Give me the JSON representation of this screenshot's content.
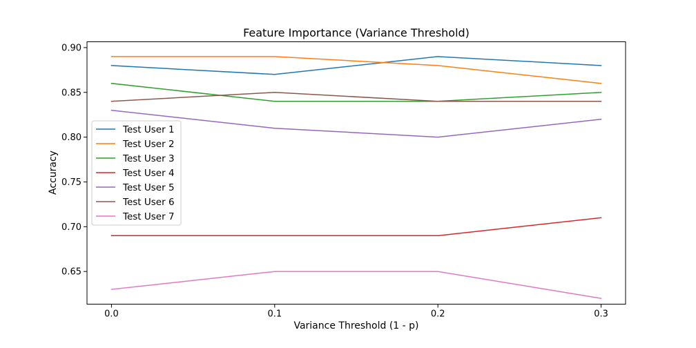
{
  "chart_data": {
    "type": "line",
    "title": "Feature Importance (Variance Threshold)",
    "xlabel": "Variance Threshold (1 - p)",
    "ylabel": "Accuracy",
    "x": [
      0.0,
      0.1,
      0.2,
      0.3
    ],
    "xticks": [
      "0.0",
      "0.1",
      "0.2",
      "0.3"
    ],
    "yticks": [
      0.65,
      0.7,
      0.75,
      0.8,
      0.85,
      0.9
    ],
    "ytick_labels": [
      "0.65",
      "0.70",
      "0.75",
      "0.80",
      "0.85",
      "0.90"
    ],
    "xlim": [
      -0.015,
      0.315
    ],
    "ylim": [
      0.6135,
      0.9065
    ],
    "grid": false,
    "legend_position": "center-left",
    "series": [
      {
        "name": "Test User 1",
        "color": "#1f77b4",
        "values": [
          0.88,
          0.87,
          0.89,
          0.88
        ]
      },
      {
        "name": "Test User 2",
        "color": "#ff7f0e",
        "values": [
          0.89,
          0.89,
          0.88,
          0.86
        ]
      },
      {
        "name": "Test User 3",
        "color": "#2ca02c",
        "values": [
          0.86,
          0.84,
          0.84,
          0.85
        ]
      },
      {
        "name": "Test User 4",
        "color": "#d62728",
        "values": [
          0.69,
          0.69,
          0.69,
          0.71
        ]
      },
      {
        "name": "Test User 5",
        "color": "#9467bd",
        "values": [
          0.83,
          0.81,
          0.8,
          0.82
        ]
      },
      {
        "name": "Test User 6",
        "color": "#8c564b",
        "values": [
          0.84,
          0.85,
          0.84,
          0.84
        ]
      },
      {
        "name": "Test User 7",
        "color": "#e377c2",
        "values": [
          0.63,
          0.65,
          0.65,
          0.62
        ]
      }
    ]
  }
}
